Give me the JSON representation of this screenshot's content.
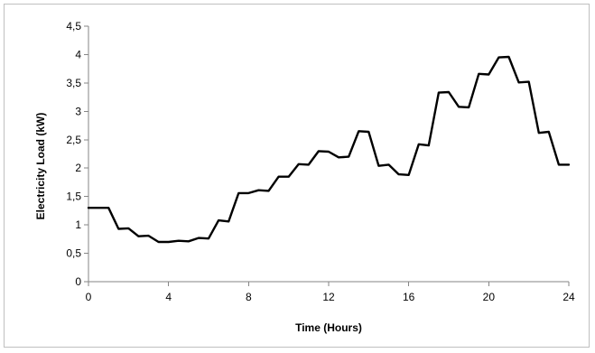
{
  "chart_data": {
    "type": "line",
    "title": "",
    "xlabel": "Time (Hours)",
    "ylabel": "Electricity Load (kW)",
    "xlim": [
      0,
      24
    ],
    "ylim": [
      0,
      4.5
    ],
    "x_ticks": [
      0,
      4,
      8,
      12,
      16,
      20,
      24
    ],
    "x_tick_labels": [
      "0",
      "4",
      "8",
      "12",
      "16",
      "20",
      "24"
    ],
    "y_ticks": [
      0,
      0.5,
      1,
      1.5,
      2,
      2.5,
      3,
      3.5,
      4,
      4.5
    ],
    "y_tick_labels": [
      "0",
      "0,5",
      "1",
      "1,5",
      "2",
      "2,5",
      "3",
      "3,5",
      "4",
      "4,5"
    ],
    "grid": false,
    "legend": "none",
    "line_color": "#000000",
    "series": [
      {
        "x": [
          0,
          0.5,
          1.0,
          1.5,
          2.0,
          2.5,
          3.0,
          3.5,
          4.0,
          4.5,
          5.0,
          5.5,
          6.0,
          6.5,
          7.0,
          7.5,
          8.0,
          8.5,
          9.0,
          9.5,
          10.0,
          10.5,
          11.0,
          11.5,
          12.0,
          12.5,
          13.0,
          13.5,
          14.0,
          14.5,
          15.0,
          15.5,
          16.0,
          16.5,
          17.0,
          17.5,
          18.0,
          18.5,
          19.0,
          19.5,
          20.0,
          20.5,
          21.0,
          21.5,
          22.0,
          22.5,
          23.0,
          23.5,
          24.0
        ],
        "values": [
          1.3,
          1.3,
          1.3,
          0.93,
          0.94,
          0.8,
          0.81,
          0.7,
          0.7,
          0.72,
          0.71,
          0.77,
          0.76,
          1.08,
          1.06,
          1.56,
          1.56,
          1.61,
          1.6,
          1.85,
          1.85,
          2.07,
          2.06,
          2.3,
          2.29,
          2.19,
          2.2,
          2.65,
          2.64,
          2.04,
          2.06,
          1.89,
          1.88,
          2.42,
          2.4,
          3.33,
          3.34,
          3.08,
          3.07,
          3.66,
          3.65,
          3.95,
          3.96,
          3.51,
          3.52,
          2.62,
          2.64,
          2.06,
          2.06
        ]
      }
    ]
  }
}
